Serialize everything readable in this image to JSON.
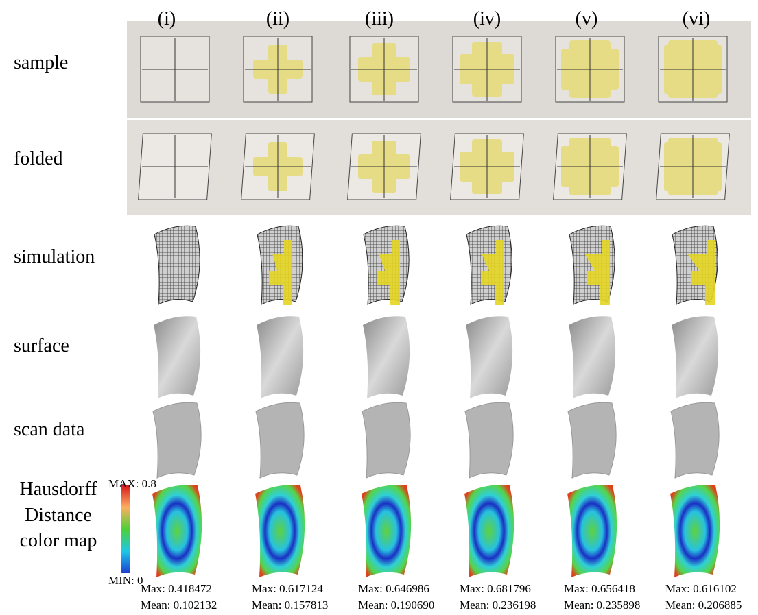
{
  "columns": [
    "(i)",
    "(ii)",
    "(iii)",
    "(iv)",
    "(v)",
    "(vi)"
  ],
  "row_labels": [
    "sample",
    "folded",
    "simulation",
    "surface",
    "scan data"
  ],
  "colormap_label": [
    "Hausdorff",
    "Distance",
    "color map"
  ],
  "colorbar": {
    "max": "MAX: 0.8",
    "min": "MIN: 0"
  },
  "stats": [
    {
      "max": "Max: 0.418472",
      "mean": "Mean: 0.102132"
    },
    {
      "max": "Max: 0.617124",
      "mean": "Mean: 0.157813"
    },
    {
      "max": "Max: 0.646986",
      "mean": "Mean: 0.190690"
    },
    {
      "max": "Max: 0.681796",
      "mean": "Mean: 0.236198"
    },
    {
      "max": "Max: 0.656418",
      "mean": "Mean: 0.235898"
    },
    {
      "max": "Max: 0.616102",
      "mean": "Mean: 0.206885"
    }
  ]
}
